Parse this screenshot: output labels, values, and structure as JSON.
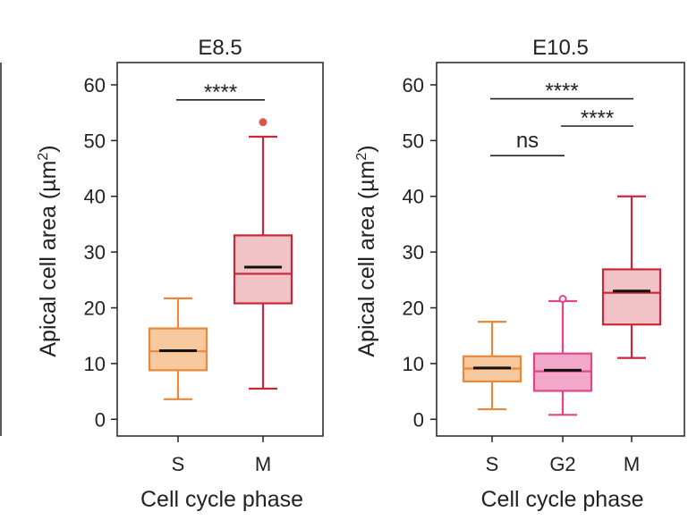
{
  "chart_data": [
    {
      "type": "box",
      "title": "E8.5",
      "xlabel": "Cell cycle phase",
      "ylabel": "Apical cell area (µm²)",
      "ylabel_text": "Apical cell area (µm",
      "ylabel_sup": "2",
      "ylabel_close": ")",
      "ylim": [
        -3,
        64
      ],
      "yticks": [
        0,
        10,
        20,
        30,
        40,
        50,
        60
      ],
      "yticklabels": [
        "0",
        "10",
        "20",
        "30",
        "40",
        "50",
        "60"
      ],
      "categories": [
        "S",
        "M"
      ],
      "boxes": [
        {
          "label": "S",
          "whisker_low": 3.6,
          "q1": 8.8,
          "median": 12.2,
          "mean": 12.3,
          "q3": 16.3,
          "whisker_high": 21.7,
          "outliers": [],
          "color": "#E8883A",
          "fill": "#F7C99F",
          "outlier_hollow": false
        },
        {
          "label": "M",
          "whisker_low": 5.5,
          "q1": 20.8,
          "median": 26.1,
          "mean": 27.3,
          "q3": 33.0,
          "whisker_high": 50.7,
          "outliers": [
            53.3
          ],
          "color": "#C8283A",
          "fill": "#F1C2C6",
          "outlier_hollow": false
        }
      ],
      "significance": [
        {
          "label": "****",
          "from": 0,
          "to": 1,
          "y": 57.3
        }
      ]
    },
    {
      "type": "box",
      "title": "E10.5",
      "xlabel": "Cell cycle phase",
      "ylabel": "Apical cell area (µm²)",
      "ylabel_text": "Apical cell area (µm",
      "ylabel_sup": "2",
      "ylabel_close": ")",
      "ylim": [
        -3,
        64
      ],
      "yticks": [
        0,
        10,
        20,
        30,
        40,
        50,
        60
      ],
      "yticklabels": [
        "0",
        "10",
        "20",
        "30",
        "40",
        "50",
        "60"
      ],
      "categories": [
        "S",
        "G2",
        "M"
      ],
      "boxes": [
        {
          "label": "S",
          "whisker_low": 1.8,
          "q1": 6.8,
          "median": 9.1,
          "mean": 9.2,
          "q3": 11.3,
          "whisker_high": 17.5,
          "outliers": [],
          "color": "#E8883A",
          "fill": "#F7C99F",
          "outlier_hollow": false
        },
        {
          "label": "G2",
          "whisker_low": 0.8,
          "q1": 5.1,
          "median": 8.6,
          "mean": 8.8,
          "q3": 11.8,
          "whisker_high": 21.2,
          "outliers": [
            21.6
          ],
          "color": "#E0478A",
          "fill": "#F2A8C8",
          "outlier_hollow": true
        },
        {
          "label": "M",
          "whisker_low": 11.0,
          "q1": 17.0,
          "median": 22.7,
          "mean": 23.0,
          "q3": 26.9,
          "whisker_high": 40.0,
          "outliers": [],
          "color": "#C8283A",
          "fill": "#F1C2C6",
          "outlier_hollow": false
        }
      ],
      "significance": [
        {
          "label": "****",
          "from": 0,
          "to": 2,
          "y": 57.5
        },
        {
          "label": "****",
          "from": 1,
          "to": 2,
          "y": 52.6
        },
        {
          "label": "ns",
          "from": 0,
          "to": 1,
          "y": 47.3
        }
      ]
    }
  ]
}
